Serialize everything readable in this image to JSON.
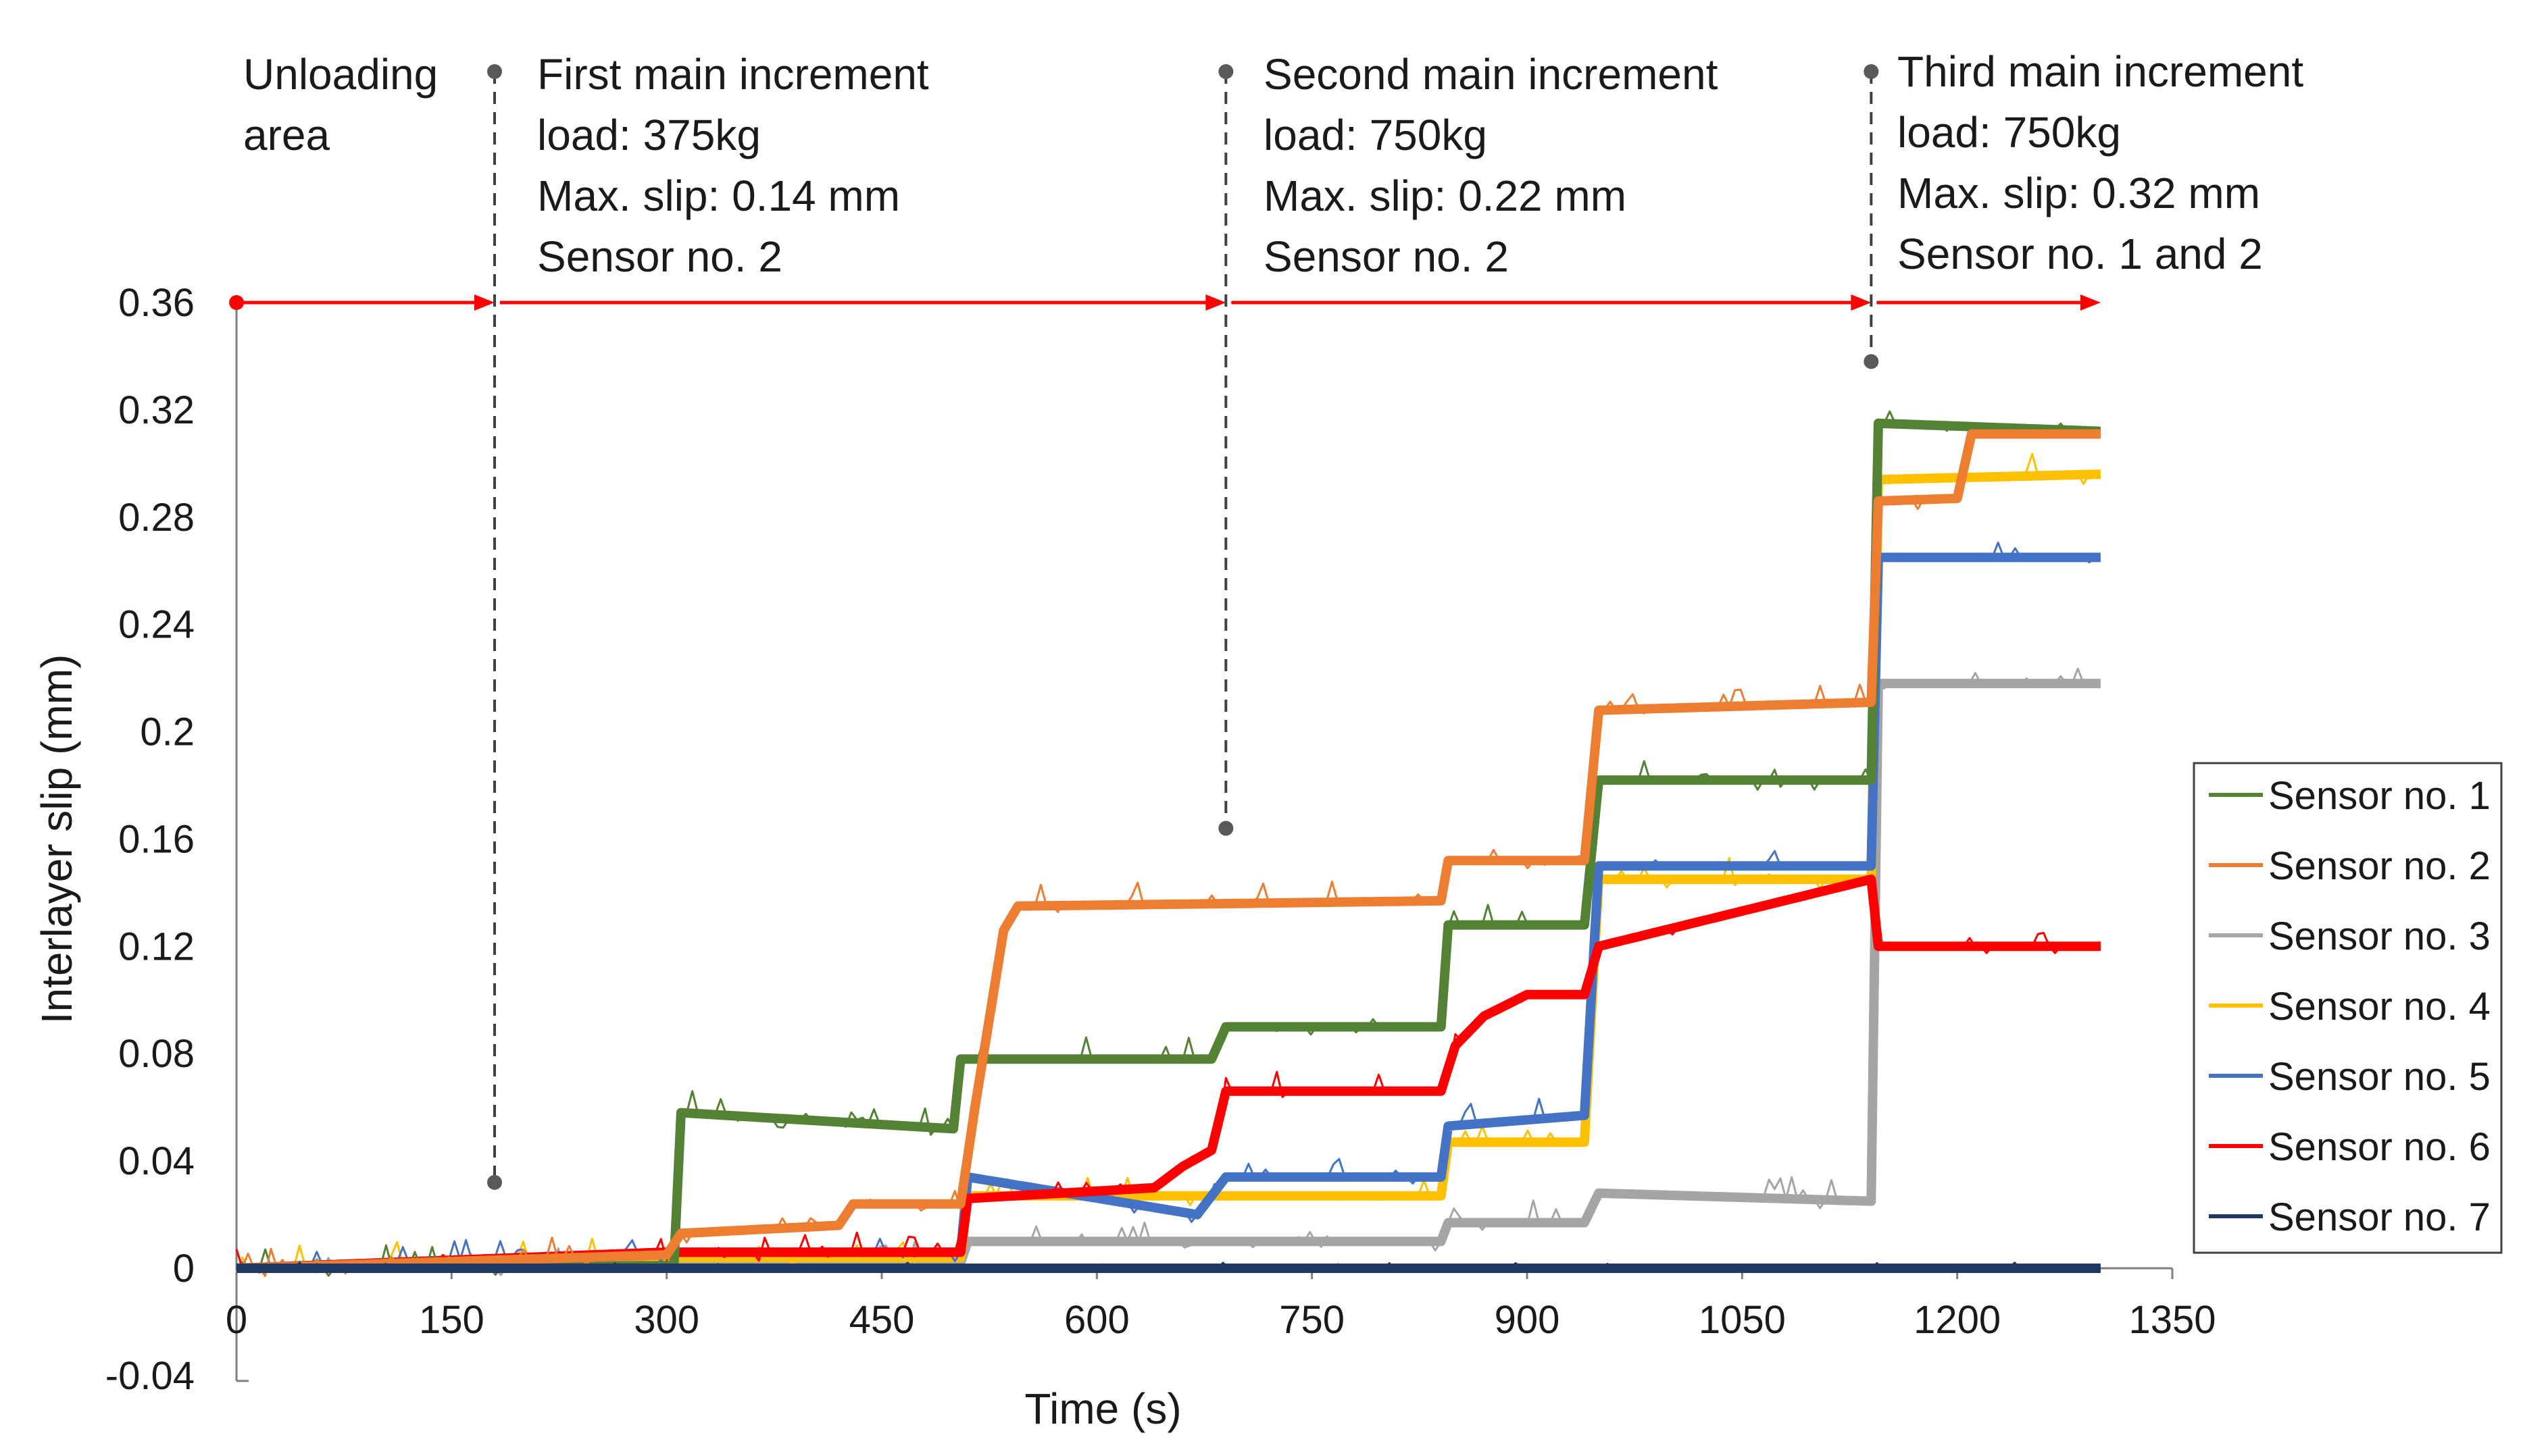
{
  "chart_data": {
    "type": "line",
    "title": "",
    "xlabel": "Time (s)",
    "ylabel": "Interlayer slip (mm)",
    "xlim": [
      0,
      1350
    ],
    "ylim": [
      -0.04,
      0.36
    ],
    "xticks": [
      "0",
      "150",
      "300",
      "450",
      "600",
      "750",
      "900",
      "1050",
      "1200",
      "1350"
    ],
    "yticks": [
      "-0.04",
      "0",
      "0.04",
      "0.08",
      "0.12",
      "0.16",
      "0.2",
      "0.24",
      "0.28",
      "0.32",
      "0.36"
    ],
    "legend_position": "right",
    "series": [
      {
        "name": "Sensor no. 1",
        "color": "#548235",
        "x": [
          0,
          305,
          310,
          500,
          505,
          680,
          690,
          840,
          845,
          940,
          950,
          1140,
          1145,
          1300
        ],
        "y": [
          0.0,
          0.001,
          0.058,
          0.052,
          0.078,
          0.078,
          0.09,
          0.09,
          0.128,
          0.128,
          0.182,
          0.182,
          0.315,
          0.312
        ]
      },
      {
        "name": "Sensor no. 2",
        "color": "#ED7D31",
        "x": [
          0,
          180,
          300,
          310,
          420,
          430,
          505,
          515,
          535,
          545,
          700,
          840,
          845,
          940,
          950,
          1140,
          1145,
          1200,
          1210,
          1300
        ],
        "y": [
          0.0,
          0.003,
          0.005,
          0.013,
          0.016,
          0.024,
          0.024,
          0.06,
          0.126,
          0.135,
          0.136,
          0.137,
          0.152,
          0.152,
          0.208,
          0.211,
          0.286,
          0.287,
          0.311,
          0.311
        ]
      },
      {
        "name": "Sensor no. 3",
        "color": "#A5A5A5",
        "x": [
          0,
          505,
          510,
          840,
          845,
          940,
          950,
          1140,
          1145,
          1300
        ],
        "y": [
          0.0,
          0.002,
          0.01,
          0.01,
          0.017,
          0.017,
          0.028,
          0.025,
          0.218,
          0.218
        ]
      },
      {
        "name": "Sensor no. 4",
        "color": "#FFC000",
        "x": [
          0,
          300,
          505,
          510,
          840,
          845,
          940,
          950,
          1140,
          1145,
          1300
        ],
        "y": [
          0.0,
          0.004,
          0.004,
          0.027,
          0.027,
          0.047,
          0.047,
          0.145,
          0.145,
          0.294,
          0.296
        ]
      },
      {
        "name": "Sensor no. 5",
        "color": "#4472C4",
        "x": [
          0,
          300,
          505,
          510,
          670,
          690,
          840,
          845,
          940,
          950,
          1140,
          1145,
          1300
        ],
        "y": [
          0.0,
          0.006,
          0.006,
          0.034,
          0.02,
          0.034,
          0.034,
          0.053,
          0.057,
          0.15,
          0.15,
          0.265,
          0.265
        ]
      },
      {
        "name": "Sensor no. 6",
        "color": "#FF0000",
        "x": [
          0,
          300,
          505,
          510,
          640,
          660,
          680,
          690,
          840,
          850,
          870,
          900,
          940,
          950,
          1140,
          1145,
          1300
        ],
        "y": [
          0.0,
          0.006,
          0.006,
          0.026,
          0.03,
          0.038,
          0.044,
          0.066,
          0.066,
          0.083,
          0.094,
          0.102,
          0.102,
          0.12,
          0.145,
          0.12,
          0.12
        ]
      },
      {
        "name": "Sensor no. 7",
        "color": "#203864",
        "x": [
          0,
          1300
        ],
        "y": [
          0.0,
          0.0
        ]
      }
    ],
    "annotations": [
      {
        "name": "unloading",
        "lines": [
          "Unloading",
          "area"
        ]
      },
      {
        "name": "first-increment",
        "x": 180,
        "lines": [
          "First main increment",
          "load: 375kg",
          "Max. slip: 0.14 mm",
          "Sensor no. 2"
        ]
      },
      {
        "name": "second-increment",
        "x": 690,
        "lines": [
          "Second main increment",
          "load: 750kg",
          "Max. slip: 0.22 mm",
          "Sensor no. 2"
        ]
      },
      {
        "name": "third-increment",
        "x": 1140,
        "lines": [
          "Third main increment",
          "load: 750kg",
          "Max. slip: 0.32 mm",
          "Sensor no. 1 and 2"
        ]
      }
    ]
  }
}
